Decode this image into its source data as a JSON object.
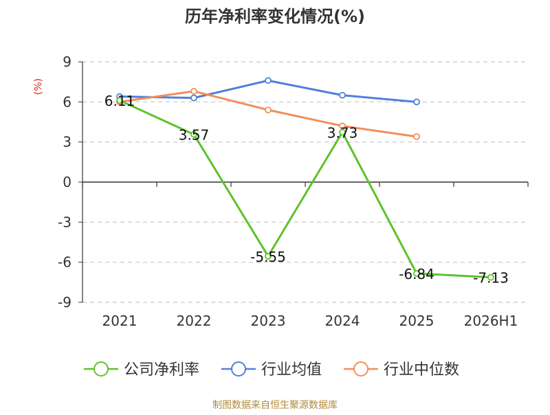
{
  "title": "历年净利率变化情况(%)",
  "unit_label": "(%)",
  "source": "制图数据来自恒生聚源数据库",
  "colors": {
    "company": "#5cc22b",
    "industry_avg": "#4f7fdb",
    "industry_median": "#f28e5b",
    "unit_label": "#e02020",
    "source": "#b08a3a",
    "grid": "#c8c8c8",
    "axis": "#333333"
  },
  "chart_data": {
    "type": "line",
    "title": "历年净利率变化情况(%)",
    "xlabel": "",
    "ylabel": "(%)",
    "categories": [
      "2021",
      "2022",
      "2023",
      "2024",
      "2025",
      "2026H1"
    ],
    "yticks": [
      9,
      6,
      3,
      0,
      -3,
      -6,
      -9
    ],
    "ylim": [
      -9,
      9
    ],
    "grid": true,
    "legend_position": "bottom",
    "series": [
      {
        "name": "公司净利率",
        "color_key": "company",
        "values": [
          6.11,
          3.57,
          -5.55,
          3.73,
          -6.84,
          -7.13
        ],
        "labels": [
          "6.11",
          "3.57",
          "-5.55",
          "3.73",
          "-6.84",
          "-7.13"
        ]
      },
      {
        "name": "行业均值",
        "color_key": "industry_avg",
        "values": [
          6.4,
          6.3,
          7.6,
          6.5,
          6.0,
          null
        ]
      },
      {
        "name": "行业中位数",
        "color_key": "industry_median",
        "values": [
          6.0,
          6.8,
          5.4,
          4.2,
          3.4,
          null
        ]
      }
    ]
  }
}
